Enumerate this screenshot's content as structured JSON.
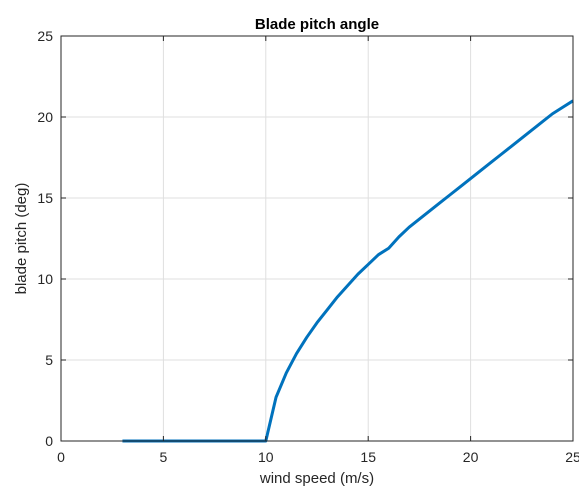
{
  "chart_data": {
    "type": "line",
    "title": "Blade pitch angle",
    "xlabel": "wind speed (m/s)",
    "ylabel": "blade pitch (deg)",
    "xlim": [
      0,
      25
    ],
    "ylim": [
      0,
      25
    ],
    "xticks": [
      "0",
      "5",
      "10",
      "15",
      "20",
      "25"
    ],
    "yticks": [
      "0",
      "5",
      "10",
      "15",
      "20",
      "25"
    ],
    "xtick_values": [
      0,
      5,
      10,
      15,
      20,
      25
    ],
    "ytick_values": [
      0,
      5,
      10,
      15,
      20,
      25
    ],
    "grid": true,
    "line_color": "#0072BD",
    "grid_color": "#dfdfdf",
    "series": [
      {
        "x": [
          3,
          4,
          5,
          6,
          7,
          8,
          9,
          10,
          10.5,
          11,
          11.5,
          12,
          12.5,
          13,
          13.5,
          14,
          14.5,
          15,
          15.5,
          16,
          16.5,
          17,
          17.5,
          18,
          18.5,
          19,
          19.5,
          20,
          20.5,
          21,
          21.5,
          22,
          22.5,
          23,
          23.5,
          24,
          24.5,
          25
        ],
        "y": [
          0,
          0,
          0,
          0,
          0,
          0,
          0,
          0,
          2.7,
          4.2,
          5.4,
          6.4,
          7.3,
          8.1,
          8.9,
          9.6,
          10.3,
          10.9,
          11.5,
          11.9,
          12.6,
          13.2,
          13.7,
          14.2,
          14.7,
          15.2,
          15.7,
          16.2,
          16.7,
          17.2,
          17.7,
          18.2,
          18.7,
          19.2,
          19.7,
          20.2,
          20.6,
          21.0
        ]
      }
    ]
  }
}
